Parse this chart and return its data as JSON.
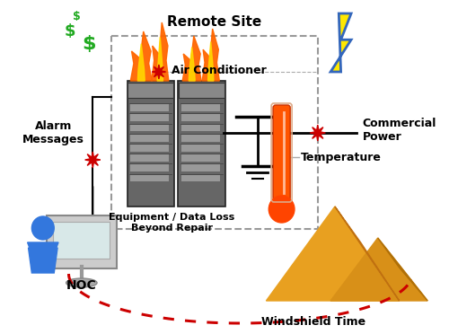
{
  "bg_color": "#ffffff",
  "box_border_color": "#999999",
  "dollar_color": "#22aa22",
  "alarm_star_color": "#cc0000",
  "power_star_color": "#cc0000",
  "ac_star_color": "#cc0000",
  "dashed_line_color": "#cc0000",
  "remote_site_label": "Remote Site",
  "air_conditioner_label": "Air Conditioner",
  "commercial_power_label": "Commercial\nPower",
  "temperature_label": "Temperature",
  "alarm_messages_label": "Alarm\nMessages",
  "equipment_label": "Equipment / Data Loss\nBeyond Repair",
  "noc_label": "NOC",
  "windshield_label": "Windshield Time"
}
